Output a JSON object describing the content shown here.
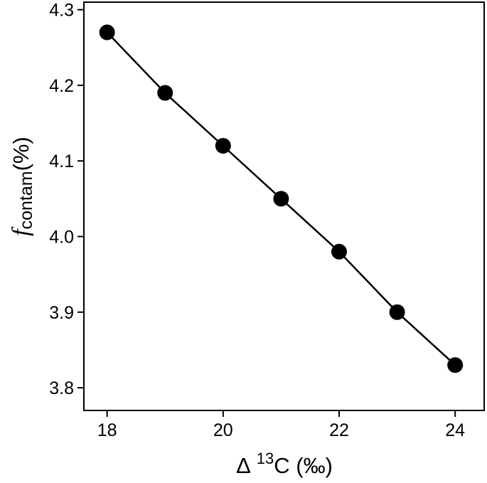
{
  "chart_data": {
    "type": "line",
    "title": "",
    "xlabel": {
      "delta": "Δ",
      "sup": "13",
      "rest": "C (‰)"
    },
    "ylabel": {
      "main": "f",
      "sub": "contam",
      "rest": "(%)"
    },
    "xlim": [
      17.6,
      24.5
    ],
    "ylim": [
      3.77,
      4.31
    ],
    "xticks": [
      18,
      20,
      22,
      24
    ],
    "xtick_labels": [
      "18",
      "20",
      "22",
      "24"
    ],
    "yticks": [
      3.8,
      3.9,
      4.0,
      4.1,
      4.2,
      4.3
    ],
    "ytick_labels": [
      "3.8",
      "3.9",
      "4.0",
      "4.1",
      "4.2",
      "4.3"
    ],
    "grid": false,
    "legend": "none",
    "series": [
      {
        "color": "#000000",
        "marker": "circle",
        "x": [
          18,
          19,
          20,
          21,
          22,
          23,
          24
        ],
        "y": [
          4.27,
          4.19,
          4.12,
          4.05,
          3.98,
          3.9,
          3.83
        ]
      }
    ]
  }
}
